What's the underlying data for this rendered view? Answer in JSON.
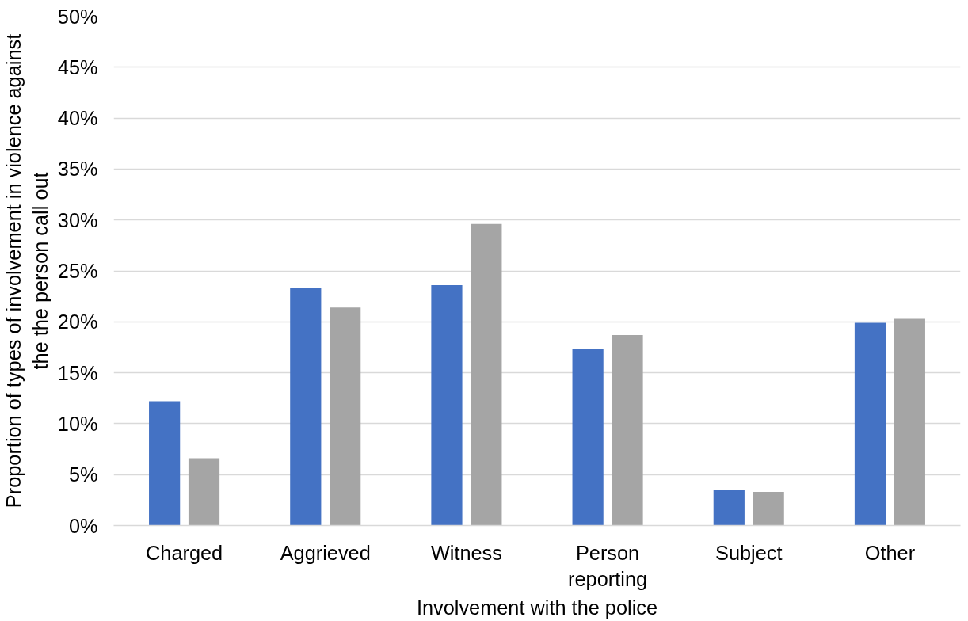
{
  "chart_data": {
    "type": "bar",
    "xlabel": "Involvement with the police",
    "ylabel": "Proportion of types of involvement in violence against the the person call out",
    "categories": [
      "Charged",
      "Aggrieved",
      "Witness",
      "Person reporting",
      "Subject",
      "Other"
    ],
    "series": [
      {
        "color": "#4472c4",
        "values": [
          12.2,
          23.3,
          23.6,
          17.3,
          3.5,
          19.9
        ]
      },
      {
        "color": "#a5a5a5",
        "values": [
          6.6,
          21.4,
          29.6,
          18.7,
          3.3,
          20.3
        ]
      }
    ],
    "ylim": [
      0,
      50
    ],
    "yticks": [
      {
        "value": 0,
        "label": "0%"
      },
      {
        "value": 5,
        "label": "5%"
      },
      {
        "value": 10,
        "label": "10%"
      },
      {
        "value": 15,
        "label": "15%"
      },
      {
        "value": 20,
        "label": "20%"
      },
      {
        "value": 25,
        "label": "25%"
      },
      {
        "value": 30,
        "label": "30%"
      },
      {
        "value": 35,
        "label": "35%"
      },
      {
        "value": 40,
        "label": "40%"
      },
      {
        "value": 45,
        "label": "45%"
      },
      {
        "value": 50,
        "label": "50%"
      }
    ],
    "grid": "y"
  }
}
